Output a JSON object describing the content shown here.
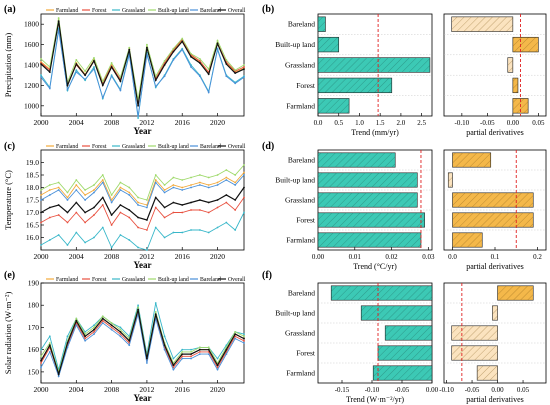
{
  "colors": {
    "Farmland": "#f2a93b",
    "Forest": "#e8503f",
    "Grassland": "#38b7c9",
    "Built-up land": "#9ed96a",
    "Bareland": "#4a90d9",
    "Overall": "#111111",
    "trend_fill": "#3cc9b5",
    "deriv_fill": "#f4b84a",
    "deriv_fill_light": "#fbe3bf",
    "dash_line": "#e02020"
  },
  "legend_entries": [
    "Farmland",
    "Forest",
    "Grassland",
    "Built-up land",
    "Bareland",
    "Overall"
  ],
  "chart_data": [
    {
      "id": "a",
      "panel_label": "(a)",
      "type": "line",
      "xlabel": "Year",
      "ylabel": "Precipitation (mm)",
      "xlim": [
        2000,
        2023
      ],
      "ylim": [
        900,
        1900
      ],
      "xticks": [
        2000,
        2004,
        2008,
        2012,
        2016,
        2020
      ],
      "yticks": [
        1000,
        1200,
        1400,
        1600,
        1800
      ],
      "x": [
        2000,
        2001,
        2002,
        2003,
        2004,
        2005,
        2006,
        2007,
        2008,
        2009,
        2010,
        2011,
        2012,
        2013,
        2014,
        2015,
        2016,
        2017,
        2018,
        2019,
        2020,
        2021,
        2022,
        2023
      ],
      "series": [
        {
          "name": "Farmland",
          "values": [
            1430,
            1360,
            1840,
            1200,
            1420,
            1310,
            1450,
            1220,
            1400,
            1250,
            1560,
            1020,
            1580,
            1260,
            1410,
            1540,
            1640,
            1490,
            1430,
            1320,
            1620,
            1420,
            1330,
            1370
          ]
        },
        {
          "name": "Forest",
          "values": [
            1420,
            1350,
            1820,
            1210,
            1400,
            1300,
            1440,
            1230,
            1390,
            1260,
            1550,
            1030,
            1570,
            1270,
            1420,
            1550,
            1650,
            1500,
            1440,
            1330,
            1610,
            1430,
            1340,
            1380
          ]
        },
        {
          "name": "Grassland",
          "values": [
            1300,
            1180,
            1760,
            1150,
            1350,
            1250,
            1380,
            1070,
            1300,
            1160,
            1520,
            880,
            1520,
            1180,
            1300,
            1460,
            1560,
            1400,
            1300,
            1140,
            1560,
            1300,
            1230,
            1290
          ]
        },
        {
          "name": "Built-up land",
          "values": [
            1460,
            1380,
            1860,
            1230,
            1450,
            1340,
            1470,
            1240,
            1420,
            1280,
            1570,
            1060,
            1600,
            1290,
            1440,
            1560,
            1660,
            1510,
            1460,
            1360,
            1640,
            1450,
            1350,
            1400
          ]
        },
        {
          "name": "Bareland",
          "values": [
            1280,
            1170,
            1740,
            1160,
            1330,
            1260,
            1360,
            1080,
            1290,
            1150,
            1500,
            900,
            1500,
            1190,
            1290,
            1450,
            1550,
            1380,
            1290,
            1130,
            1550,
            1290,
            1220,
            1280
          ]
        },
        {
          "name": "Overall",
          "values": [
            1410,
            1330,
            1830,
            1200,
            1410,
            1300,
            1440,
            1200,
            1380,
            1240,
            1550,
            1000,
            1570,
            1250,
            1400,
            1530,
            1630,
            1480,
            1420,
            1310,
            1610,
            1410,
            1320,
            1360
          ]
        }
      ]
    },
    {
      "id": "b",
      "panel_label": "(b)",
      "type": "bar",
      "orientation": "horizontal",
      "xlabel": "Trend (mm/yr)",
      "categories": [
        "Farmland",
        "Forest",
        "Grassland",
        "Built-up land",
        "Bareland"
      ],
      "values": [
        0.75,
        1.78,
        2.7,
        0.5,
        0.18
      ],
      "xlim": [
        0,
        2.75
      ],
      "xticks": [
        0,
        0.5,
        1,
        1.5,
        2,
        2.5
      ],
      "xtick_labels": [
        "0.0",
        "0.5",
        "1.0",
        "1.5",
        "2.0",
        "2.5"
      ],
      "ref_line": 1.45
    },
    {
      "id": "b2",
      "type": "bar",
      "orientation": "horizontal",
      "xlabel": "partial derivatives",
      "categories": [
        "Farmland",
        "Forest",
        "Grassland",
        "Built-up land",
        "Bareland"
      ],
      "values": [
        0.03,
        0.01,
        -0.01,
        0.05,
        -0.12
      ],
      "xlim": [
        -0.135,
        0.065
      ],
      "xticks": [
        -0.1,
        -0.05,
        0,
        0.05
      ],
      "xtick_labels": [
        "-0.10",
        "-0.05",
        "0.00",
        "0.05"
      ],
      "ref_line": 0.015
    },
    {
      "id": "c",
      "panel_label": "(c)",
      "type": "line",
      "xlabel": "Year",
      "ylabel": "Temperature (°C)",
      "xlim": [
        2000,
        2023
      ],
      "ylim": [
        15.5,
        19.5
      ],
      "xticks": [
        2000,
        2004,
        2008,
        2012,
        2016,
        2020
      ],
      "yticks": [
        16,
        16.5,
        17,
        17.5,
        18,
        18.5,
        19
      ],
      "ytick_labels": [
        "16.0",
        "16.5",
        "17.0",
        "17.5",
        "18.0",
        "18.5",
        "19.0"
      ],
      "x": [
        2000,
        2001,
        2002,
        2003,
        2004,
        2005,
        2006,
        2007,
        2008,
        2009,
        2010,
        2011,
        2012,
        2013,
        2014,
        2015,
        2016,
        2017,
        2018,
        2019,
        2020,
        2021,
        2022,
        2023
      ],
      "series": [
        {
          "name": "Farmland",
          "values": [
            17.7,
            17.9,
            18.0,
            17.6,
            18.1,
            17.7,
            17.9,
            18.3,
            17.5,
            18.0,
            17.8,
            17.4,
            17.3,
            18.3,
            17.9,
            18.1,
            18.0,
            18.1,
            18.2,
            18.1,
            18.2,
            18.4,
            18.2,
            18.6
          ]
        },
        {
          "name": "Forest",
          "values": [
            16.6,
            16.8,
            16.9,
            16.6,
            17.0,
            16.6,
            16.9,
            17.3,
            16.5,
            17.0,
            16.8,
            16.4,
            16.3,
            17.2,
            16.8,
            17.0,
            17.0,
            17.1,
            17.1,
            17.0,
            17.2,
            17.4,
            17.1,
            17.6
          ]
        },
        {
          "name": "Grassland",
          "values": [
            15.7,
            15.9,
            16.1,
            15.7,
            16.2,
            15.8,
            16.0,
            16.4,
            15.6,
            16.1,
            15.9,
            15.6,
            15.5,
            16.4,
            16.0,
            16.2,
            16.2,
            16.3,
            16.3,
            16.2,
            16.4,
            16.6,
            16.3,
            17.0
          ]
        },
        {
          "name": "Built-up land",
          "values": [
            17.9,
            18.1,
            18.2,
            17.8,
            18.3,
            17.9,
            18.1,
            18.5,
            17.7,
            18.2,
            18.0,
            17.6,
            17.5,
            18.5,
            18.1,
            18.4,
            18.3,
            18.4,
            18.5,
            18.4,
            18.5,
            18.7,
            18.5,
            18.9
          ]
        },
        {
          "name": "Bareland",
          "values": [
            17.5,
            17.7,
            17.9,
            17.5,
            17.9,
            17.5,
            17.8,
            18.2,
            17.4,
            17.9,
            17.7,
            17.3,
            17.2,
            18.2,
            17.8,
            18.0,
            17.9,
            18.0,
            18.1,
            18.0,
            18.1,
            18.3,
            18.1,
            18.5
          ]
        },
        {
          "name": "Overall",
          "values": [
            17.0,
            17.2,
            17.3,
            17.0,
            17.4,
            17.0,
            17.2,
            17.6,
            16.9,
            17.3,
            17.1,
            16.8,
            16.7,
            17.6,
            17.2,
            17.4,
            17.3,
            17.4,
            17.5,
            17.4,
            17.5,
            17.7,
            17.5,
            18.0
          ]
        }
      ]
    },
    {
      "id": "d",
      "panel_label": "(d)",
      "type": "bar",
      "orientation": "horizontal",
      "xlabel": "Trend (°C/yr)",
      "categories": [
        "Farmland",
        "Forest",
        "Grassland",
        "Built-up land",
        "Bareland"
      ],
      "values": [
        0.028,
        0.029,
        0.027,
        0.027,
        0.021
      ],
      "xlim": [
        0,
        0.031
      ],
      "xticks": [
        0,
        0.01,
        0.02,
        0.03
      ],
      "xtick_labels": [
        "0.00",
        "0.01",
        "0.02",
        "0.03"
      ],
      "ref_line": 0.028
    },
    {
      "id": "d2",
      "type": "bar",
      "orientation": "horizontal",
      "xlabel": "partial derivatives",
      "categories": [
        "Farmland",
        "Forest",
        "Grassland",
        "Built-up land",
        "Bareland"
      ],
      "values": [
        0.07,
        0.19,
        0.19,
        -0.01,
        0.09
      ],
      "xlim": [
        -0.02,
        0.22
      ],
      "xticks": [
        0,
        0.1,
        0.2
      ],
      "xtick_labels": [
        "0.0",
        "0.1",
        "0.2"
      ],
      "ref_line": 0.15
    },
    {
      "id": "e",
      "panel_label": "(e)",
      "type": "line",
      "xlabel": "Year",
      "ylabel": "Solar radiation (W·m⁻²)",
      "xlim": [
        2000,
        2023
      ],
      "ylim": [
        145,
        190
      ],
      "xticks": [
        2000,
        2004,
        2008,
        2012,
        2016,
        2020
      ],
      "yticks": [
        150,
        160,
        170,
        180,
        190
      ],
      "x": [
        2000,
        2001,
        2002,
        2003,
        2004,
        2005,
        2006,
        2007,
        2008,
        2009,
        2010,
        2011,
        2012,
        2013,
        2014,
        2015,
        2016,
        2017,
        2018,
        2019,
        2020,
        2021,
        2022,
        2023
      ],
      "series": [
        {
          "name": "Farmland",
          "values": [
            155,
            162,
            149,
            163,
            173,
            166,
            169,
            174,
            171,
            168,
            164,
            178,
            156,
            176,
            162,
            153,
            158,
            158,
            160,
            160,
            153,
            160,
            167,
            165
          ]
        },
        {
          "name": "Forest",
          "values": [
            154,
            161,
            149,
            162,
            172,
            165,
            168,
            173,
            170,
            167,
            163,
            177,
            155,
            175,
            161,
            152,
            157,
            157,
            159,
            159,
            152,
            159,
            166,
            164
          ]
        },
        {
          "name": "Grassland",
          "values": [
            160,
            166,
            151,
            166,
            174,
            168,
            171,
            175,
            172,
            170,
            166,
            180,
            158,
            181,
            166,
            156,
            160,
            160,
            161,
            161,
            156,
            162,
            168,
            167
          ]
        },
        {
          "name": "Built-up land",
          "values": [
            157,
            163,
            150,
            164,
            174,
            167,
            170,
            175,
            172,
            169,
            165,
            179,
            157,
            177,
            163,
            154,
            159,
            159,
            161,
            161,
            154,
            161,
            168,
            166
          ]
        },
        {
          "name": "Bareland",
          "values": [
            152,
            159,
            148,
            161,
            171,
            164,
            167,
            172,
            169,
            166,
            162,
            176,
            154,
            174,
            160,
            151,
            156,
            156,
            158,
            158,
            151,
            158,
            165,
            163
          ]
        },
        {
          "name": "Overall",
          "values": [
            155,
            162,
            149,
            163,
            173,
            166,
            169,
            174,
            171,
            168,
            164,
            178,
            156,
            176,
            162,
            153,
            158,
            158,
            160,
            160,
            153,
            160,
            167,
            165
          ]
        }
      ]
    },
    {
      "id": "f",
      "panel_label": "(f)",
      "type": "bar",
      "orientation": "horizontal",
      "xlabel": "Trend (W·m⁻²/yr)",
      "categories": [
        "Farmland",
        "Forest",
        "Grassland",
        "Built-up land",
        "Bareland"
      ],
      "values": [
        -0.098,
        -0.09,
        -0.078,
        -0.118,
        -0.168
      ],
      "xlim": [
        -0.19,
        0
      ],
      "xticks": [
        -0.15,
        -0.1,
        -0.05,
        0
      ],
      "xtick_labels": [
        "-0.15",
        "-0.10",
        "-0.05",
        "0.00"
      ],
      "ref_line": -0.09
    },
    {
      "id": "f2",
      "type": "bar",
      "orientation": "horizontal",
      "xlabel": "partial derivatives",
      "categories": [
        "Farmland",
        "Forest",
        "Grassland",
        "Built-up land",
        "Bareland"
      ],
      "values": [
        -0.04,
        -0.09,
        -0.09,
        -0.01,
        0.07
      ],
      "xlim": [
        -0.105,
        0.095
      ],
      "xticks": [
        -0.1,
        -0.05,
        0,
        0.05
      ],
      "xtick_labels": [
        "-0.10",
        "-0.05",
        "0.00",
        "0.05"
      ],
      "ref_line": -0.07
    }
  ]
}
